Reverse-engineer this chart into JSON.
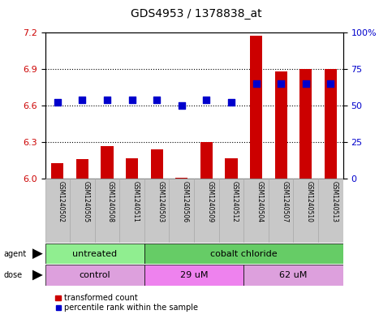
{
  "title": "GDS4953 / 1378838_at",
  "samples": [
    "GSM1240502",
    "GSM1240505",
    "GSM1240508",
    "GSM1240511",
    "GSM1240503",
    "GSM1240506",
    "GSM1240509",
    "GSM1240512",
    "GSM1240504",
    "GSM1240507",
    "GSM1240510",
    "GSM1240513"
  ],
  "bar_values": [
    6.13,
    6.16,
    6.27,
    6.17,
    6.24,
    6.01,
    6.3,
    6.17,
    7.17,
    6.88,
    6.9,
    6.9
  ],
  "dot_values": [
    52,
    54,
    54,
    54,
    54,
    50,
    54,
    52,
    65,
    65,
    65,
    65
  ],
  "bar_color": "#cc0000",
  "dot_color": "#0000cc",
  "ylim_left": [
    6.0,
    7.2
  ],
  "ylim_right": [
    0,
    100
  ],
  "yticks_left": [
    6.0,
    6.3,
    6.6,
    6.9,
    7.2
  ],
  "yticks_right": [
    0,
    25,
    50,
    75,
    100
  ],
  "ytick_labels_right": [
    "0",
    "25",
    "50",
    "75",
    "100%"
  ],
  "gridlines": [
    6.3,
    6.6,
    6.9
  ],
  "agent_groups": [
    {
      "label": "untreated",
      "start": 0,
      "end": 4,
      "color": "#90ee90"
    },
    {
      "label": "cobalt chloride",
      "start": 4,
      "end": 12,
      "color": "#66cc66"
    }
  ],
  "dose_groups": [
    {
      "label": "control",
      "start": 0,
      "end": 4,
      "color": "#dda0dd"
    },
    {
      "label": "29 uM",
      "start": 4,
      "end": 8,
      "color": "#ee82ee"
    },
    {
      "label": "62 uM",
      "start": 8,
      "end": 12,
      "color": "#dda0dd"
    }
  ],
  "legend_bar_label": "transformed count",
  "legend_dot_label": "percentile rank within the sample",
  "plot_bg_color": "#ffffff",
  "tick_label_color_left": "#cc0000",
  "tick_label_color_right": "#0000cc",
  "bar_width": 0.5,
  "dot_size": 30,
  "label_box_color": "#c8c8c8",
  "label_box_edge_color": "#aaaaaa"
}
